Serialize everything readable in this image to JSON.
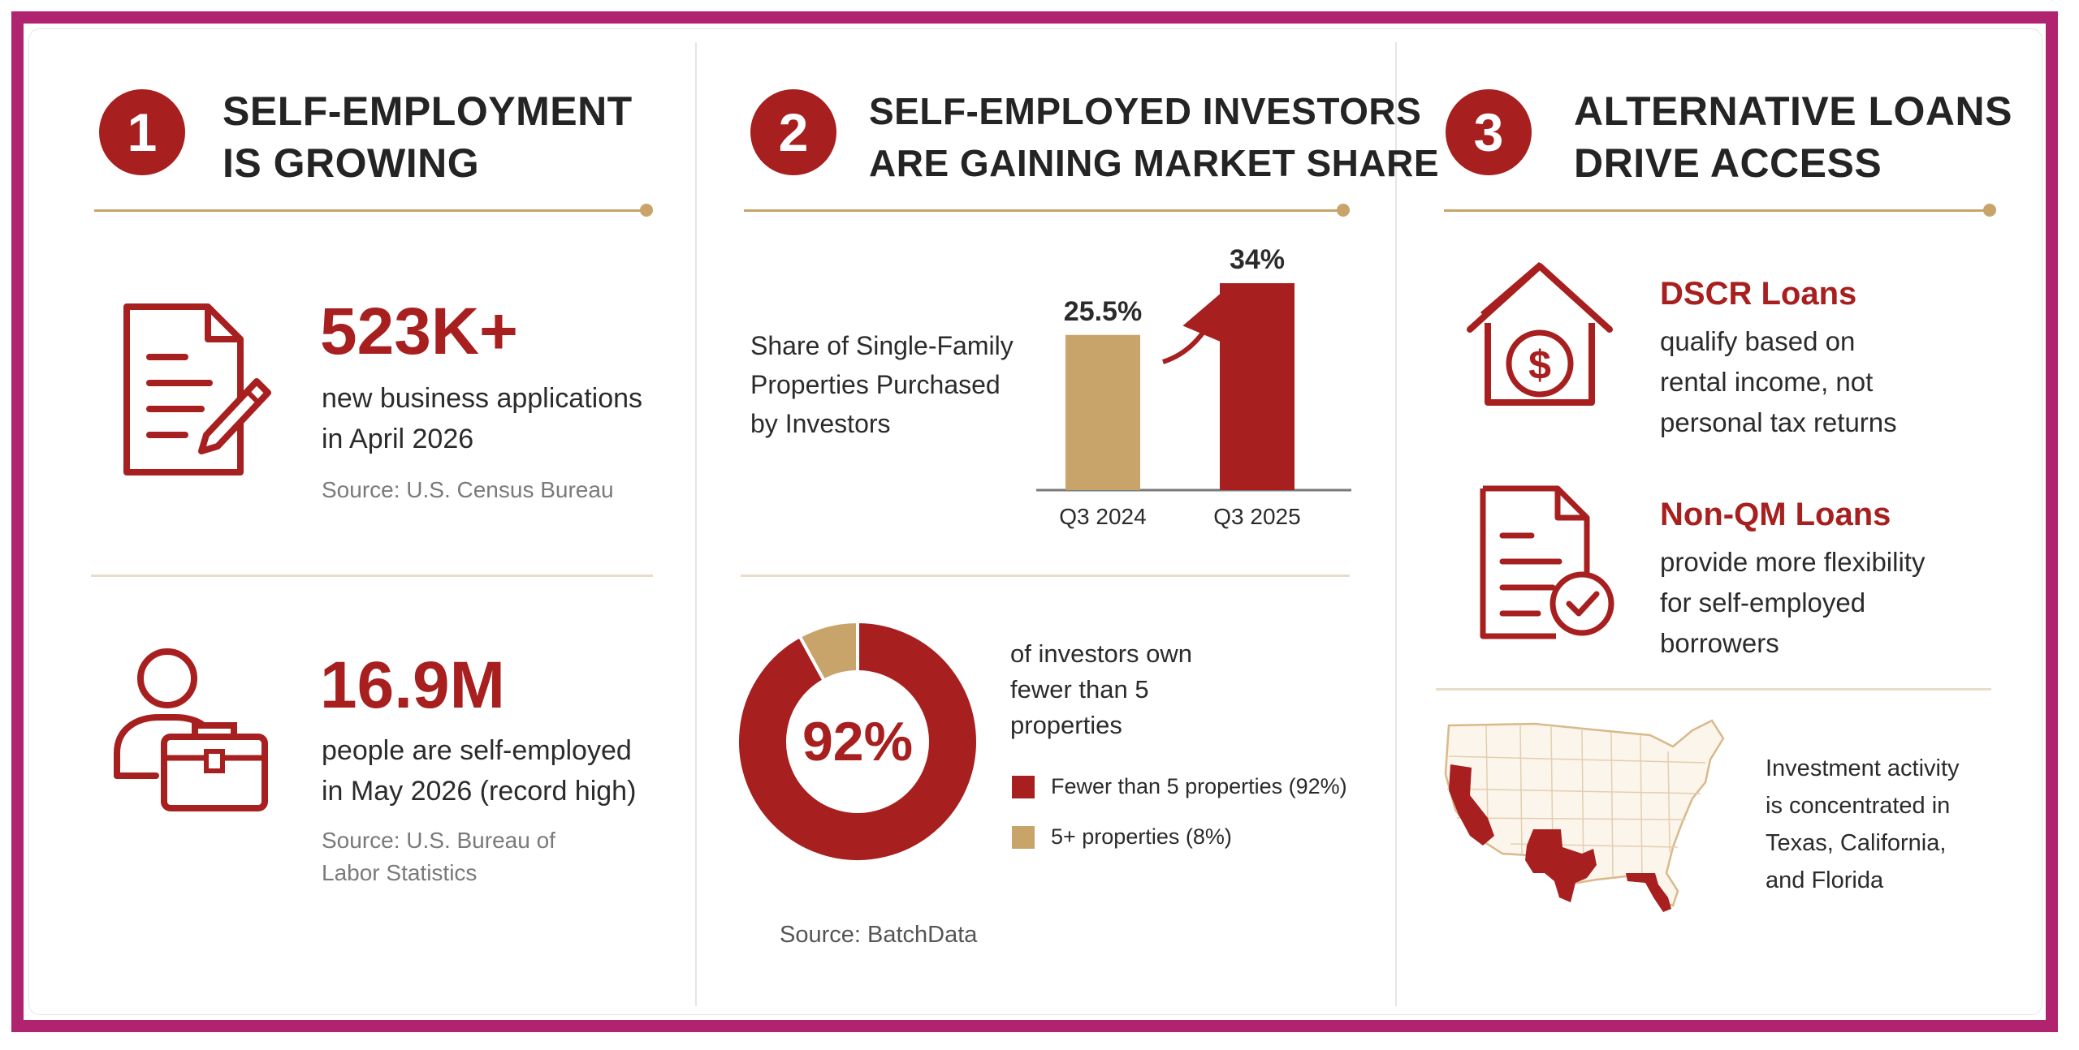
{
  "colors": {
    "frame": "#b0236e",
    "accent_red": "#a81f1f",
    "gold": "#c8a46b",
    "tan": "#c9a46a"
  },
  "sections": [
    {
      "number": "1",
      "title_lines": [
        "SELF-EMPLOYMENT",
        "IS GROWING"
      ],
      "stats": [
        {
          "icon": "document-pen-icon",
          "value": "523K+",
          "desc_lines": [
            "new business applications",
            "in April 2026"
          ],
          "source_lines": [
            "Source: U.S. Census Bureau"
          ]
        },
        {
          "icon": "person-briefcase-icon",
          "value": "16.9M",
          "desc_lines": [
            "people are self-employed",
            "in May 2026 (record high)"
          ],
          "source_lines": [
            "Source: U.S. Bureau of",
            "Labor Statistics"
          ]
        }
      ]
    },
    {
      "number": "2",
      "title_lines": [
        "SELF-EMPLOYED INVESTORS",
        "ARE GAINING MARKET SHARE"
      ],
      "bar_caption_lines": [
        "Share of Single-Family",
        "Properties Purchased",
        "by Investors"
      ],
      "donut_caption_lines": [
        "of investors own",
        "fewer than 5",
        "properties"
      ],
      "donut_center": "92%",
      "source": "Source: BatchData"
    },
    {
      "number": "3",
      "title_lines": [
        "ALTERNATIVE LOANS",
        "DRIVE ACCESS"
      ],
      "items": [
        {
          "icon": "house-dollar-icon",
          "title": "DSCR Loans",
          "desc_lines": [
            "qualify based on",
            "rental income, not",
            "personal tax returns"
          ]
        },
        {
          "icon": "document-check-icon",
          "title": "Non-QM Loans",
          "desc_lines": [
            "provide more flexibility",
            "for self-employed",
            "borrowers"
          ]
        }
      ],
      "map_icon": "us-map-icon",
      "map_caption_lines": [
        "Investment activity",
        "is concentrated in",
        "Texas, California,",
        "and Florida"
      ]
    }
  ],
  "chart_data": [
    {
      "type": "bar",
      "categories": [
        "Q3 2024",
        "Q3 2025"
      ],
      "values": [
        25.5,
        34
      ],
      "value_labels": [
        "25.5%",
        "34%"
      ],
      "colors": [
        "#c9a46a",
        "#a81f1f"
      ],
      "ylim": [
        0,
        40
      ]
    },
    {
      "type": "pie",
      "labels": [
        "Fewer than 5 properties",
        "5+ properties"
      ],
      "legend_labels": [
        "Fewer than 5 properties (92%)",
        "5+ properties (8%)"
      ],
      "values": [
        92,
        8
      ],
      "colors": [
        "#a81f1f",
        "#c9a46a"
      ],
      "legend": "right"
    }
  ]
}
